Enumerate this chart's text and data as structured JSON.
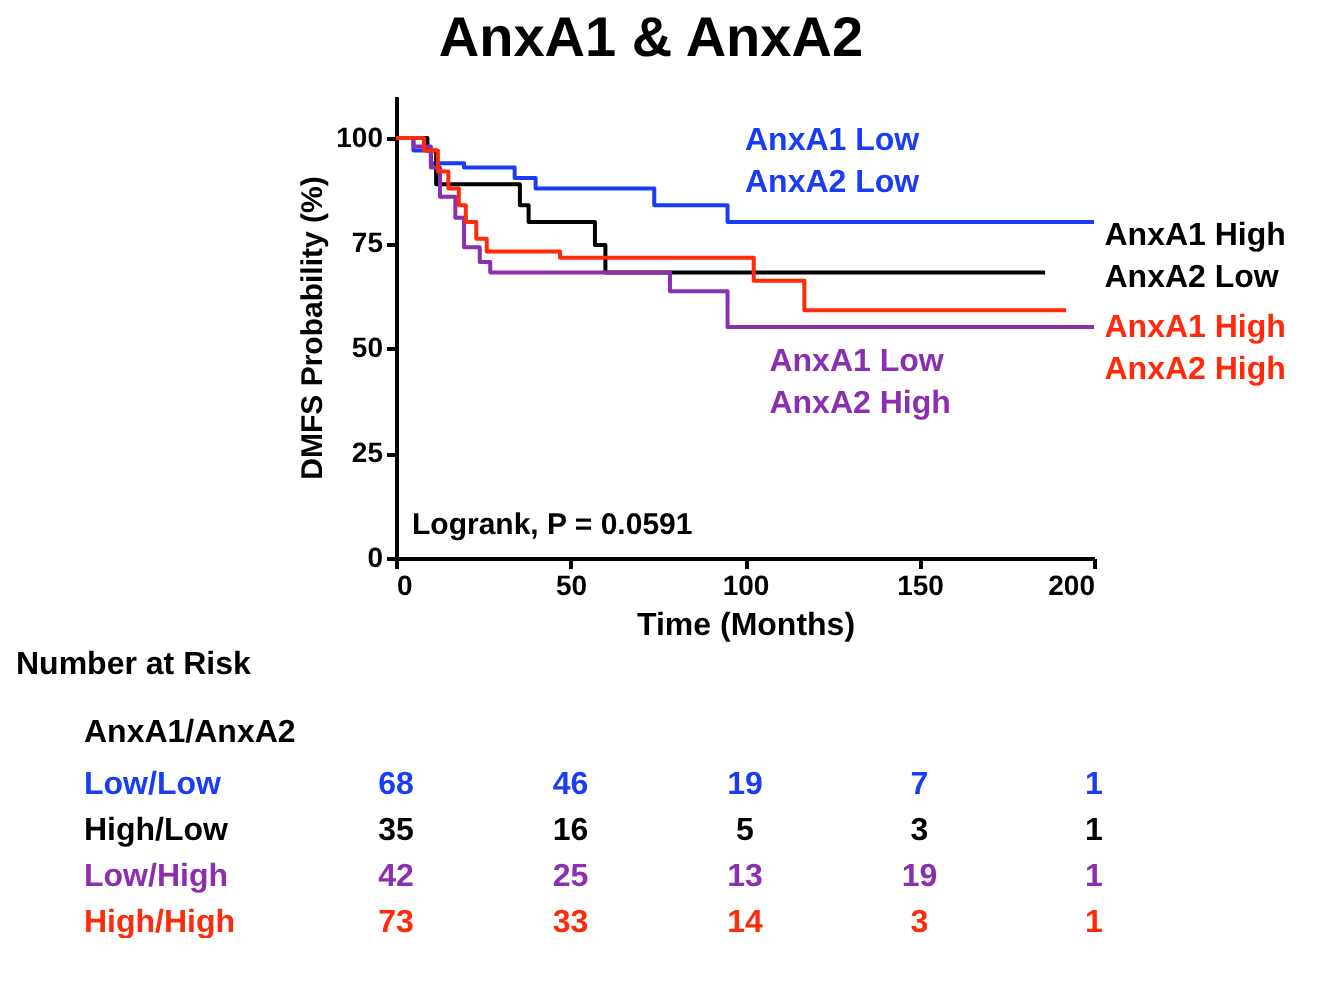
{
  "chart_data": {
    "type": "step",
    "title": "AnxA1 & AnxA2",
    "xlabel": "Time (Months)",
    "ylabel": "DMFS Probability (%)",
    "xlim": [
      0,
      200
    ],
    "ylim": [
      0,
      110
    ],
    "xticks": [
      0,
      50,
      100,
      150,
      200
    ],
    "yticks": [
      0,
      25,
      50,
      75,
      100
    ],
    "grid": false,
    "legend": false,
    "line_style": "solid",
    "series": [
      {
        "name": "AnxA1 Low\nAnxA2 Low",
        "color": "#1a3cf5",
        "x": [
          0,
          5,
          10,
          19.5,
          34,
          40,
          74,
          95,
          200
        ],
        "values": [
          100,
          97,
          94,
          93,
          90.5,
          88,
          84,
          80,
          80
        ]
      },
      {
        "name": "AnxA1 High\nAnxA2 Low",
        "color": "#000000",
        "x": [
          0,
          9,
          11.5,
          35.5,
          38,
          57,
          60,
          186
        ],
        "values": [
          100,
          97,
          89,
          84,
          80,
          74.5,
          68,
          68
        ]
      },
      {
        "name": "AnxA1 Low\nAnxA2 High",
        "color": "#8b2fb0",
        "x": [
          0,
          5,
          10,
          12.6,
          17,
          19.5,
          24,
          27,
          78.5,
          95,
          200
        ],
        "values": [
          100,
          98,
          93,
          86,
          81,
          74,
          70.5,
          68,
          63.5,
          55,
          55
        ]
      },
      {
        "name": "AnxA1 High\nAnxA2 High",
        "color": "#ff2a0a",
        "x": [
          0,
          8,
          12,
          15,
          18,
          20,
          23,
          26,
          47,
          102.5,
          117,
          192
        ],
        "values": [
          100,
          97,
          92,
          88,
          84,
          80,
          76,
          73,
          71.5,
          66,
          59,
          59
        ]
      }
    ],
    "annotations": [
      "Logrank, P = 0.0591",
      "Number at Risk",
      "AnxA1/AnxA2",
      "Low/Low",
      "68",
      "46",
      "19",
      "7",
      "1",
      "High/Low",
      "35",
      "16",
      "5",
      "3",
      "1",
      "Low/High",
      "42",
      "25",
      "13",
      "19",
      "1",
      "High/High",
      "73",
      "33",
      "14",
      "3",
      "1"
    ]
  }
}
